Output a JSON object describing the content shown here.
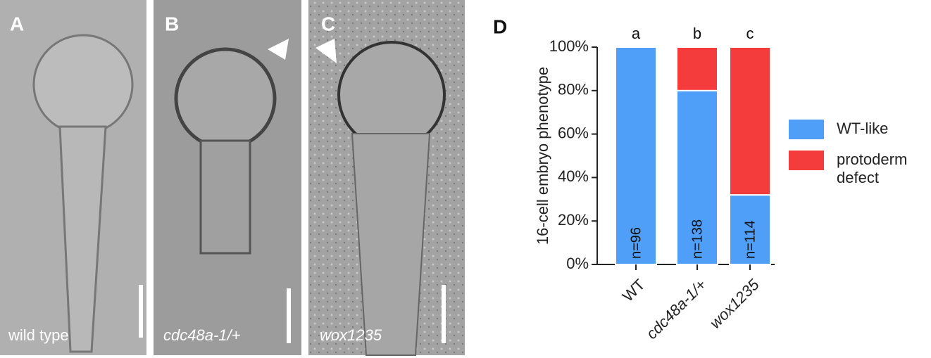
{
  "panels": [
    {
      "label": "A",
      "caption": "wild type"
    },
    {
      "label": "B",
      "caption": "cdc48a-1/+"
    },
    {
      "label": "C",
      "caption": "wox1235"
    }
  ],
  "chart_data": {
    "type": "stacked_bar",
    "panel_label": "D",
    "ylabel": "16-cell embryo phenotype",
    "categories": [
      "WT",
      "cdc48a-1/+",
      "wox1235"
    ],
    "series": [
      {
        "name": "WT-like",
        "color": "#4f9ef8",
        "values": [
          100,
          80,
          32
        ]
      },
      {
        "name": "protoderm defect",
        "color": "#f53c3c",
        "values": [
          0,
          20,
          68
        ]
      }
    ],
    "bar_labels": [
      "n=96",
      "n=138",
      "n=114"
    ],
    "annotations": [
      "a",
      "b",
      "c"
    ],
    "ylim": [
      0,
      100
    ],
    "yticks": [
      {
        "value": 0,
        "label": "0%"
      },
      {
        "value": 20,
        "label": "20%"
      },
      {
        "value": 40,
        "label": "40%"
      },
      {
        "value": 60,
        "label": "60%"
      },
      {
        "value": 80,
        "label": "80%"
      },
      {
        "value": 100,
        "label": "100%"
      }
    ],
    "legend": "right"
  }
}
